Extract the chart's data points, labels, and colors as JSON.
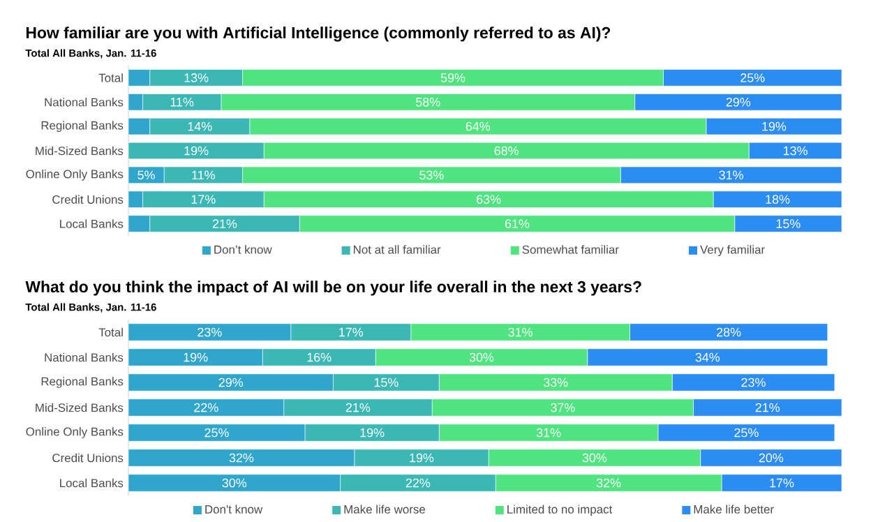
{
  "chart_data": [
    {
      "type": "bar",
      "orientation": "horizontal",
      "stacked": true,
      "title": "How familiar are you with Artificial Intelligence (commonly referred to as AI)?",
      "subtitle": "Total All Banks, Jan. 11-16",
      "categories": [
        "Total",
        "National Banks",
        "Regional Banks",
        "Mid-Sized Banks",
        "Online Only Banks",
        "Credit Unions",
        "Local Banks"
      ],
      "series": [
        {
          "name": "Don’t know",
          "color": "#31a6cc",
          "values": [
            3,
            2,
            3,
            0,
            5,
            2,
            3
          ],
          "value_labels": [
            null,
            null,
            null,
            null,
            "5%",
            null,
            null
          ]
        },
        {
          "name": "Not at all familiar",
          "color": "#3bb8b6",
          "values": [
            13,
            11,
            14,
            19,
            11,
            17,
            21
          ],
          "value_labels": [
            "13%",
            "11%",
            "14%",
            "19%",
            "11%",
            "17%",
            "21%"
          ]
        },
        {
          "name": "Somewhat familiar",
          "color": "#50e480",
          "values": [
            59,
            58,
            64,
            68,
            53,
            63,
            61
          ],
          "value_labels": [
            "59%",
            "58%",
            "64%",
            "68%",
            "53%",
            "63%",
            "61%"
          ]
        },
        {
          "name": "Very familiar",
          "color": "#2b8cf2",
          "values": [
            25,
            29,
            19,
            13,
            31,
            18,
            15
          ],
          "value_labels": [
            "25%",
            "29%",
            "19%",
            "13%",
            "31%",
            "18%",
            "15%"
          ]
        }
      ],
      "tick_labels": "y",
      "legend": "bottom"
    },
    {
      "type": "bar",
      "orientation": "horizontal",
      "stacked": true,
      "title": "What do you think the impact of AI will be on your life overall in the next 3 years?",
      "subtitle": "Total All Banks, Jan. 11-16",
      "categories": [
        "Total",
        "National Banks",
        "Regional Banks",
        "Mid-Sized Banks",
        "Online Only Banks",
        "Credit Unions",
        "Local Banks"
      ],
      "series": [
        {
          "name": "Don't know",
          "color": "#31a6cc",
          "values": [
            23,
            19,
            29,
            22,
            25,
            32,
            30
          ],
          "value_labels": [
            "23%",
            "19%",
            "29%",
            "22%",
            "25%",
            "32%",
            "30%"
          ]
        },
        {
          "name": "Make life worse",
          "color": "#3bb8b6",
          "values": [
            17,
            16,
            15,
            21,
            19,
            19,
            22
          ],
          "value_labels": [
            "17%",
            "16%",
            "15%",
            "21%",
            "19%",
            "19%",
            "22%"
          ]
        },
        {
          "name": "Limited to no impact",
          "color": "#50e480",
          "values": [
            31,
            30,
            33,
            37,
            31,
            30,
            32
          ],
          "value_labels": [
            "31%",
            "30%",
            "33%",
            "37%",
            "31%",
            "30%",
            "32%"
          ]
        },
        {
          "name": "Make life better",
          "color": "#2b8cf2",
          "values": [
            28,
            34,
            23,
            21,
            25,
            20,
            17
          ],
          "value_labels": [
            "28%",
            "34%",
            "23%",
            "21%",
            "25%",
            "20%",
            "17%"
          ]
        }
      ],
      "tick_labels": "y",
      "legend": "bottom"
    }
  ]
}
